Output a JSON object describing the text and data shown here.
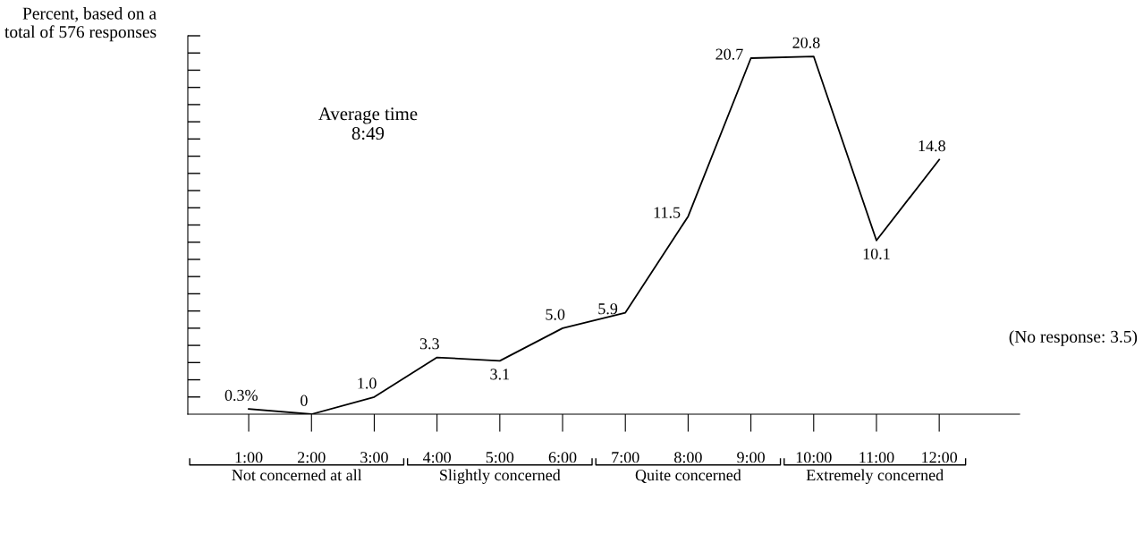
{
  "chart_data": {
    "type": "line",
    "ylabel": "Percent, based on a\ntotal of 576 responses",
    "categories": [
      "1:00",
      "2:00",
      "3:00",
      "4:00",
      "5:00",
      "6:00",
      "7:00",
      "8:00",
      "9:00",
      "10:00",
      "11:00",
      "12:00"
    ],
    "series": [
      {
        "color": "#000000",
        "values": [
          0.3,
          0,
          1.0,
          3.3,
          3.1,
          5.0,
          5.9,
          11.5,
          20.7,
          20.8,
          10.1,
          14.8
        ],
        "value_labels": [
          "0.3%",
          "0",
          "1.0",
          "3.3",
          "3.1",
          "5.0",
          "5.9",
          "11.5",
          "20.7",
          "20.8",
          "10.1",
          "14.8"
        ]
      }
    ],
    "ylim": [
      0,
      22
    ],
    "yticks": [
      {
        "value": 1,
        "label": null
      },
      {
        "value": 2,
        "label": null
      },
      {
        "value": 3,
        "label": null
      },
      {
        "value": 4,
        "label": null
      },
      {
        "value": 5,
        "label": null
      },
      {
        "value": 6,
        "label": null
      },
      {
        "value": 7,
        "label": null
      },
      {
        "value": 8,
        "label": null
      },
      {
        "value": 9,
        "label": null
      },
      {
        "value": 10,
        "label": null
      },
      {
        "value": 11,
        "label": null
      },
      {
        "value": 12,
        "label": null
      },
      {
        "value": 13,
        "label": null
      },
      {
        "value": 14,
        "label": null
      },
      {
        "value": 15,
        "label": null
      },
      {
        "value": 16,
        "label": null
      },
      {
        "value": 17,
        "label": null
      },
      {
        "value": 18,
        "label": null
      },
      {
        "value": 19,
        "label": null
      },
      {
        "value": 20,
        "label": null
      },
      {
        "value": 21,
        "label": null
      },
      {
        "value": 22,
        "label": null
      }
    ],
    "annotations": [
      "Average time\n8:49",
      "(No response: 3.5)",
      "Not concerned at all",
      "Slightly concerned",
      "Quite concerned",
      "Extremely concerned"
    ],
    "grid": false,
    "marker": "none",
    "line_style": "solid"
  }
}
